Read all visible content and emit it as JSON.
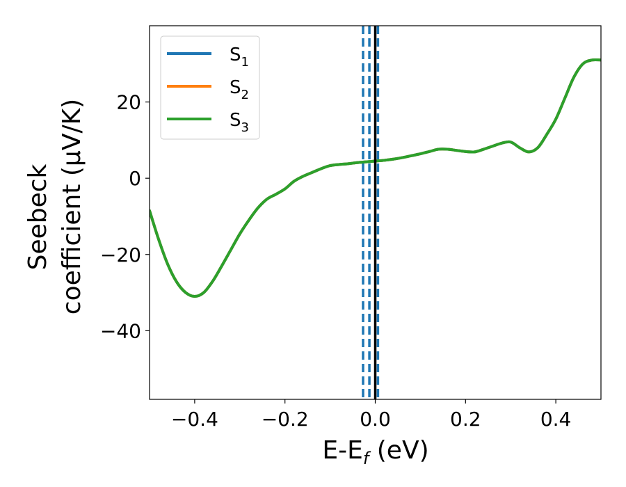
{
  "chart_data": {
    "type": "line",
    "xlabel_main": "E-E",
    "xlabel_sub": "f",
    "xlabel_unit": " (eV)",
    "ylabel_line1": "Seebeck",
    "ylabel_line2": "coefficient  (μV/K)",
    "xlim": [
      -0.5,
      0.5
    ],
    "ylim": [
      -58,
      40
    ],
    "xticks": [
      -0.4,
      -0.2,
      0.0,
      0.2,
      0.4
    ],
    "xtick_labels": [
      "−0.4",
      "−0.2",
      "0.0",
      "0.2",
      "0.4"
    ],
    "yticks": [
      -40,
      -20,
      0,
      20
    ],
    "ytick_labels": [
      "−40",
      "−20",
      "0",
      "20"
    ],
    "grid": false,
    "legend_position": "top-left",
    "series": [
      {
        "name_main": "S",
        "name_sub": "1",
        "color": "#1f77b4"
      },
      {
        "name_main": "S",
        "name_sub": "2",
        "color": "#ff7f0e"
      },
      {
        "name_main": "S",
        "name_sub": "3",
        "color": "#2ca02c"
      }
    ],
    "curve": {
      "x": [
        -0.5,
        -0.48,
        -0.46,
        -0.44,
        -0.42,
        -0.4,
        -0.38,
        -0.36,
        -0.34,
        -0.32,
        -0.3,
        -0.28,
        -0.26,
        -0.24,
        -0.22,
        -0.2,
        -0.18,
        -0.16,
        -0.14,
        -0.12,
        -0.1,
        -0.08,
        -0.06,
        -0.04,
        -0.02,
        0.0,
        0.02,
        0.04,
        0.06,
        0.08,
        0.1,
        0.12,
        0.14,
        0.16,
        0.18,
        0.2,
        0.22,
        0.24,
        0.26,
        0.28,
        0.3,
        0.32,
        0.34,
        0.36,
        0.38,
        0.4,
        0.42,
        0.44,
        0.46,
        0.48,
        0.5
      ],
      "y": [
        -8.5,
        -16,
        -22.5,
        -27.2,
        -30,
        -31,
        -30,
        -27,
        -23,
        -18.8,
        -14.6,
        -11,
        -7.8,
        -5.5,
        -4.2,
        -2.8,
        -0.8,
        0.5,
        1.5,
        2.5,
        3.3,
        3.6,
        3.8,
        4.1,
        4.3,
        4.5,
        4.7,
        5.0,
        5.4,
        5.9,
        6.4,
        7.0,
        7.6,
        7.6,
        7.3,
        7.0,
        6.9,
        7.6,
        8.4,
        9.2,
        9.5,
        8.0,
        6.9,
        8.0,
        11.5,
        15.5,
        21,
        26.5,
        30,
        31,
        31
      ]
    },
    "vlines": [
      {
        "x": 0.0,
        "color": "#000000",
        "style": "solid"
      },
      {
        "x": -0.027,
        "color": "#1f77b4",
        "style": "dashed"
      },
      {
        "x": -0.013,
        "color": "#1f77b4",
        "style": "dashed"
      },
      {
        "x": 0.006,
        "color": "#1f77b4",
        "style": "dashed"
      }
    ]
  }
}
